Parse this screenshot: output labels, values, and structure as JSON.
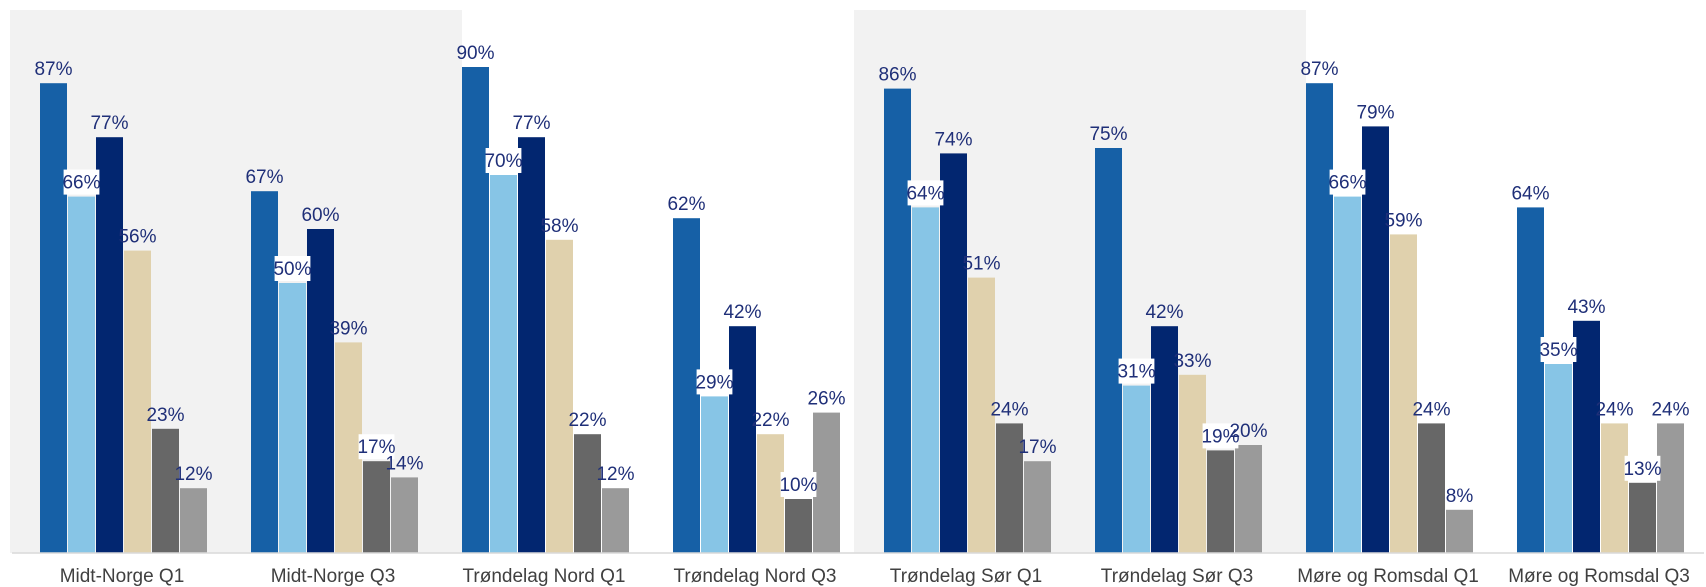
{
  "chart_data": {
    "type": "bar",
    "title": "",
    "xlabel": "",
    "ylabel": "",
    "ylim": [
      0,
      100
    ],
    "grid": false,
    "legend": "none",
    "categories": [
      "Midt-Norge Q1",
      "Midt-Norge Q3",
      "Trøndelag Nord Q1",
      "Trøndelag Nord Q3",
      "Trøndelag Sør Q1",
      "Trøndelag Sør Q3",
      "Møre og Romsdal Q1",
      "Møre og Romsdal Q3"
    ],
    "series_colors": [
      "#1660a6",
      "#87c5e6",
      "#022670",
      "#e0d1ad",
      "#676767",
      "#9a9a9a"
    ],
    "value_suffix": "%",
    "series": [
      {
        "values": [
          87,
          67,
          90,
          62,
          86,
          75,
          87,
          64
        ]
      },
      {
        "values": [
          66,
          50,
          70,
          29,
          64,
          31,
          66,
          35
        ]
      },
      {
        "values": [
          77,
          60,
          77,
          42,
          74,
          42,
          79,
          43
        ]
      },
      {
        "values": [
          56,
          39,
          58,
          22,
          51,
          33,
          59,
          24
        ]
      },
      {
        "values": [
          23,
          17,
          22,
          10,
          24,
          19,
          24,
          13
        ]
      },
      {
        "values": [
          12,
          14,
          12,
          26,
          17,
          20,
          8,
          24
        ]
      }
    ],
    "data_labels": [
      [
        "87%",
        "67%",
        "90%",
        "62%",
        "86%",
        "75%",
        "87%",
        "64%"
      ],
      [
        "66%",
        "50%",
        "70%",
        "29%",
        "64%",
        "31%",
        "66%",
        "35%"
      ],
      [
        "77%",
        "60%",
        "77%",
        "42%",
        "74%",
        "42%",
        "79%",
        "43%"
      ],
      [
        "56%",
        "39%",
        "58%",
        "22%",
        "51%",
        "33%",
        "59%",
        "24%"
      ],
      [
        "23%",
        "17%",
        "22%",
        "10%",
        "24%",
        "19%",
        "24%",
        "13%"
      ],
      [
        "12%",
        "14%",
        "12%",
        "26%",
        "17%",
        "20%",
        "8%",
        "24%"
      ]
    ],
    "background_bands": {
      "color": "#f2f2f2"
    }
  }
}
